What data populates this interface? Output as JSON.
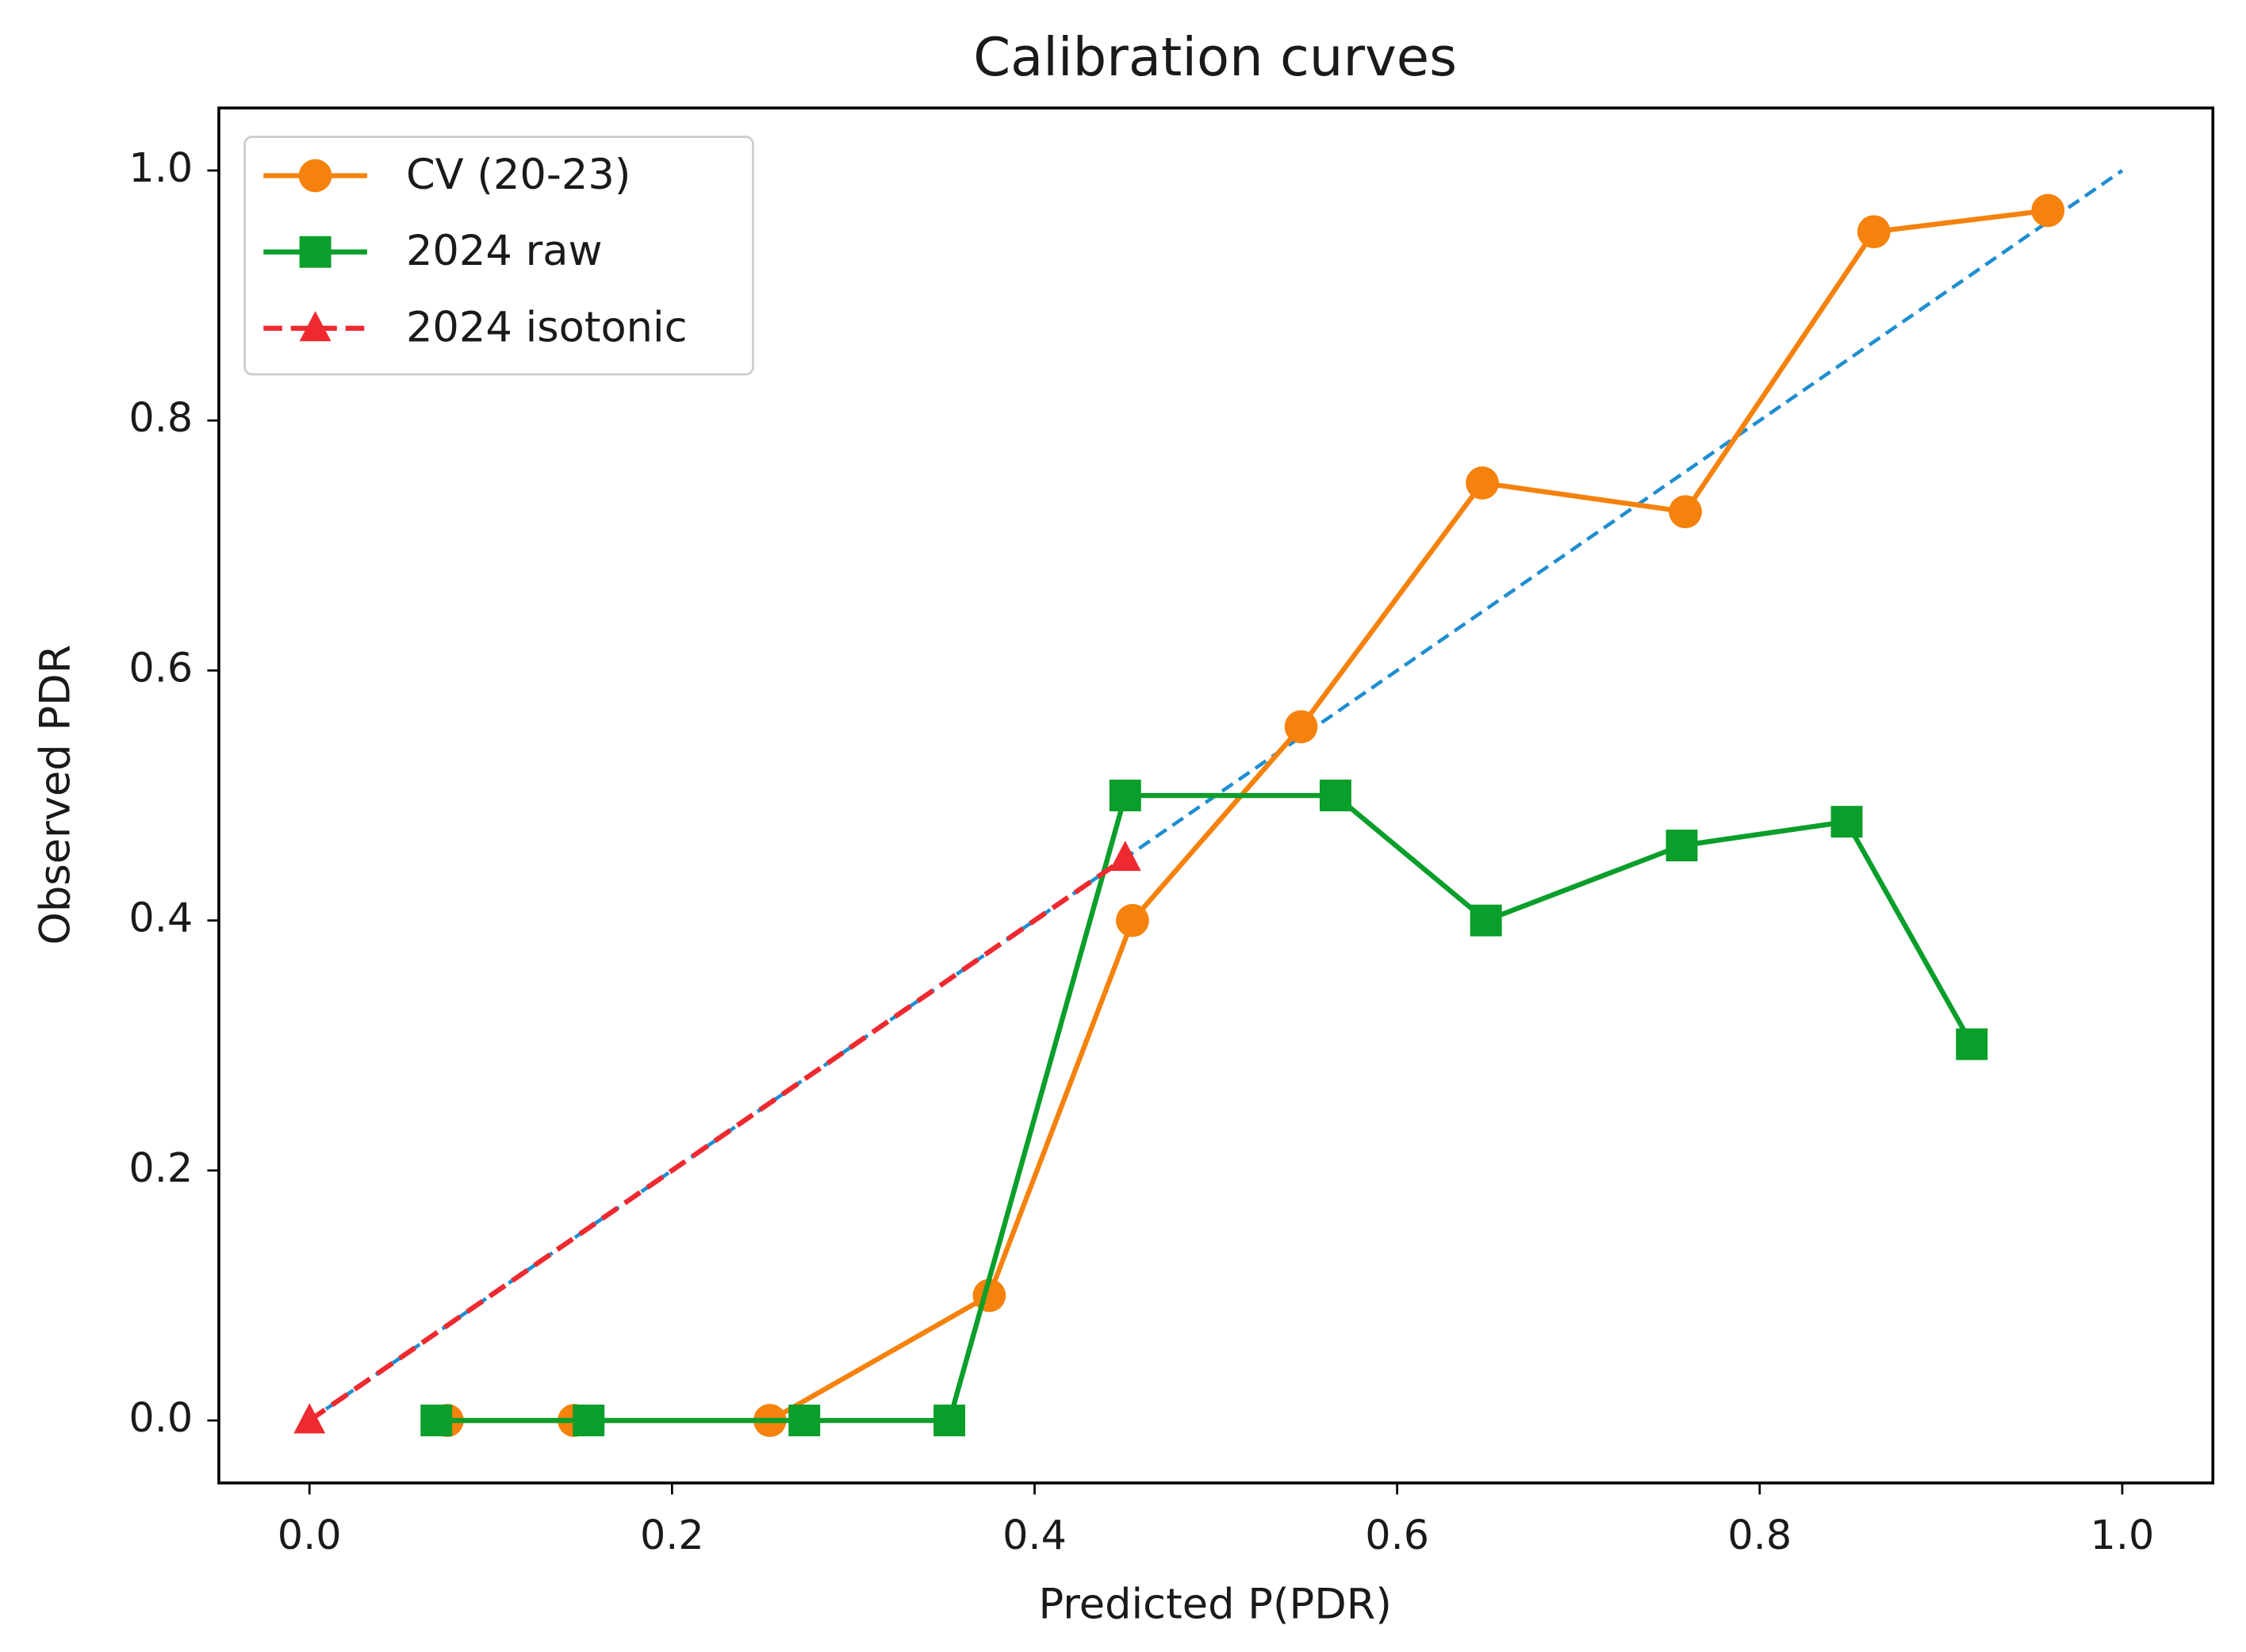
{
  "chart_data": {
    "type": "line",
    "title": "Calibration curves",
    "x_label": "Predicted P(PDR)",
    "y_label": "Observed PDR",
    "xlim": [
      -0.05,
      1.05
    ],
    "ylim": [
      -0.05,
      1.05
    ],
    "xticks": [
      {
        "value": 0,
        "label": "0.0"
      },
      0.2,
      0.4,
      0.6,
      0.8,
      {
        "value": 1,
        "label": "1.0"
      }
    ],
    "yticks": [
      {
        "value": 0,
        "label": "0.0"
      },
      0.2,
      0.4,
      0.6,
      0.8,
      {
        "value": 1,
        "label": "1.0"
      }
    ],
    "grid": false,
    "legend": "upper left",
    "reference_line": {
      "x": [
        0,
        1
      ],
      "y": [
        0,
        1
      ],
      "color": "#1f8ed0",
      "dashed": true
    },
    "series": [
      {
        "name": "CV (20-23)",
        "color": "#f5820d",
        "marker": "circle",
        "dashed": false,
        "x": [
          0.076,
          0.146,
          0.254,
          0.375,
          0.454,
          0.547,
          0.647,
          0.759,
          0.863,
          0.959
        ],
        "values": [
          0,
          0,
          0,
          0.1,
          0.4,
          0.555,
          0.75,
          0.727,
          0.951,
          0.968
        ]
      },
      {
        "name": "2024 raw",
        "color": "#0a9e2a",
        "marker": "square",
        "dashed": false,
        "x": [
          0.07,
          0.154,
          0.273,
          0.353,
          0.45,
          0.566,
          0.649,
          0.757,
          0.848,
          0.917
        ],
        "values": [
          0,
          0,
          0,
          0,
          0.5,
          0.5,
          0.4,
          0.46,
          0.479,
          0.301
        ]
      },
      {
        "name": "2024 isotonic",
        "color": "#ee2a30",
        "marker": "triangle",
        "dashed": true,
        "x": [
          0,
          0.45
        ],
        "values": [
          0,
          0.45
        ]
      }
    ]
  }
}
